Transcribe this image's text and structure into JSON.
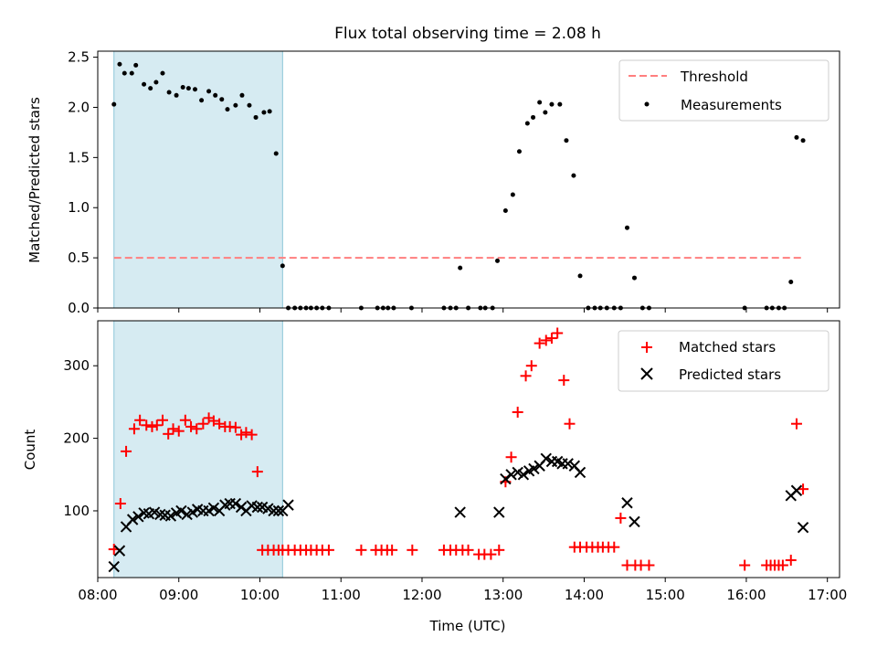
{
  "chart_data": [
    {
      "type": "scatter",
      "title": "Flux total observing time = 2.08 h",
      "xlabel": "",
      "ylabel": "Matched/Predicted stars",
      "xlim": [
        8.0,
        17.15
      ],
      "ylim": [
        0,
        2.56
      ],
      "xticks": [
        8,
        9,
        10,
        11,
        12,
        13,
        14,
        15,
        16,
        17
      ],
      "yticks": [
        0.0,
        0.5,
        1.0,
        1.5,
        2.0,
        2.5
      ],
      "ytick_labels": [
        "0.0",
        "0.5",
        "1.0",
        "1.5",
        "2.0",
        "2.5"
      ],
      "observing_window": [
        8.2,
        10.28
      ],
      "threshold": {
        "name": "Threshold",
        "value": 0.5,
        "x_start": 8.2,
        "x_end": 16.7,
        "color": "#ff7f7f"
      },
      "legend": {
        "position": "top-right",
        "entries": [
          "Threshold",
          "Measurements"
        ]
      },
      "series": [
        {
          "name": "Measurements",
          "color": "#000000",
          "marker": "dot",
          "x": [
            8.2,
            8.27,
            8.33,
            8.42,
            8.47,
            8.57,
            8.65,
            8.72,
            8.8,
            8.88,
            8.97,
            9.05,
            9.12,
            9.2,
            9.28,
            9.37,
            9.45,
            9.53,
            9.6,
            9.7,
            9.78,
            9.87,
            9.95,
            10.05,
            10.12,
            10.2,
            10.28,
            10.35,
            10.43,
            10.5,
            10.57,
            10.63,
            10.7,
            10.77,
            10.85,
            11.25,
            11.45,
            11.52,
            11.58,
            11.65,
            11.87,
            12.27,
            12.35,
            12.42,
            12.47,
            12.57,
            12.72,
            12.78,
            12.87,
            12.93,
            13.03,
            13.12,
            13.2,
            13.3,
            13.37,
            13.45,
            13.52,
            13.6,
            13.7,
            13.78,
            13.87,
            13.95,
            14.05,
            14.13,
            14.2,
            14.28,
            14.37,
            14.45,
            14.53,
            14.62,
            14.72,
            14.8,
            15.98,
            16.25,
            16.32,
            16.4,
            16.47,
            16.55,
            16.62,
            16.7
          ],
          "y": [
            2.03,
            2.43,
            2.34,
            2.34,
            2.42,
            2.23,
            2.19,
            2.25,
            2.34,
            2.15,
            2.12,
            2.2,
            2.19,
            2.18,
            2.07,
            2.16,
            2.12,
            2.08,
            1.98,
            2.02,
            2.12,
            2.02,
            1.9,
            1.95,
            1.96,
            1.54,
            0.42,
            0.0,
            0.0,
            0.0,
            0.0,
            0.0,
            0.0,
            0.0,
            0.0,
            0.0,
            0.0,
            0.0,
            0.0,
            0.0,
            0.0,
            0.0,
            0.0,
            0.0,
            0.4,
            0.0,
            0.0,
            0.0,
            0.0,
            0.47,
            0.97,
            1.13,
            1.56,
            1.84,
            1.9,
            2.05,
            1.95,
            2.03,
            2.03,
            1.67,
            1.32,
            0.32,
            0.0,
            0.0,
            0.0,
            0.0,
            0.0,
            0.0,
            0.8,
            0.3,
            0.0,
            0.0,
            0.0,
            0.0,
            0.0,
            0.0,
            0.0,
            0.26,
            1.7,
            1.67
          ]
        }
      ]
    },
    {
      "type": "scatter",
      "title": "",
      "xlabel": "Time (UTC)",
      "ylabel": "Count",
      "xlim": [
        8.0,
        17.15
      ],
      "ylim": [
        8,
        362
      ],
      "xticks": [
        8,
        9,
        10,
        11,
        12,
        13,
        14,
        15,
        16,
        17
      ],
      "xtick_labels": [
        "08:00",
        "09:00",
        "10:00",
        "11:00",
        "12:00",
        "13:00",
        "14:00",
        "15:00",
        "16:00",
        "17:00"
      ],
      "yticks": [
        100,
        200,
        300
      ],
      "ytick_labels": [
        "100",
        "200",
        "300"
      ],
      "observing_window": [
        8.2,
        10.28
      ],
      "legend": {
        "position": "top-right",
        "entries": [
          "Matched stars",
          "Predicted stars"
        ]
      },
      "series": [
        {
          "name": "Matched stars",
          "color": "#ff0000",
          "marker": "plus",
          "x": [
            8.2,
            8.28,
            8.35,
            8.45,
            8.52,
            8.6,
            8.67,
            8.73,
            8.8,
            8.87,
            8.93,
            9.0,
            9.08,
            9.15,
            9.22,
            9.3,
            9.37,
            9.43,
            9.5,
            9.57,
            9.63,
            9.7,
            9.77,
            9.83,
            9.9,
            9.97,
            10.03,
            10.1,
            10.17,
            10.23,
            10.28,
            10.35,
            10.43,
            10.5,
            10.57,
            10.63,
            10.7,
            10.77,
            10.85,
            11.25,
            11.43,
            11.5,
            11.57,
            11.63,
            11.88,
            12.27,
            12.35,
            12.42,
            12.5,
            12.57,
            12.7,
            12.77,
            12.85,
            12.95,
            13.03,
            13.1,
            13.18,
            13.28,
            13.35,
            13.45,
            13.53,
            13.6,
            13.67,
            13.75,
            13.82,
            13.88,
            13.95,
            14.03,
            14.1,
            14.17,
            14.23,
            14.3,
            14.37,
            14.45,
            14.53,
            14.63,
            14.7,
            14.8,
            15.98,
            16.25,
            16.3,
            16.35,
            16.4,
            16.45,
            16.55,
            16.62,
            16.7
          ],
          "y": [
            47,
            110,
            182,
            213,
            225,
            218,
            216,
            218,
            225,
            206,
            213,
            210,
            225,
            216,
            213,
            220,
            228,
            224,
            220,
            216,
            216,
            215,
            205,
            208,
            205,
            154,
            46,
            46,
            46,
            46,
            46,
            46,
            46,
            46,
            46,
            46,
            46,
            46,
            46,
            46,
            46,
            46,
            46,
            46,
            46,
            46,
            46,
            46,
            46,
            46,
            40,
            40,
            40,
            46,
            140,
            174,
            236,
            286,
            300,
            331,
            335,
            338,
            345,
            280,
            220,
            50,
            50,
            50,
            50,
            50,
            50,
            50,
            50,
            90,
            25,
            25,
            25,
            25,
            25,
            25,
            25,
            25,
            25,
            25,
            32,
            220,
            130
          ]
        },
        {
          "name": "Predicted stars",
          "color": "#000000",
          "marker": "x",
          "x": [
            8.2,
            8.27,
            8.35,
            8.43,
            8.5,
            8.57,
            8.63,
            8.7,
            8.77,
            8.83,
            8.9,
            8.97,
            9.03,
            9.1,
            9.17,
            9.23,
            9.3,
            9.37,
            9.43,
            9.5,
            9.57,
            9.63,
            9.7,
            9.77,
            9.83,
            9.9,
            9.97,
            10.03,
            10.1,
            10.17,
            10.23,
            10.28,
            10.35,
            12.47,
            12.95,
            13.03,
            13.1,
            13.18,
            13.25,
            13.32,
            13.38,
            13.45,
            13.53,
            13.6,
            13.67,
            13.73,
            13.8,
            13.88,
            13.95,
            14.53,
            14.62,
            16.55,
            16.62,
            16.7
          ],
          "y": [
            23,
            45,
            78,
            88,
            92,
            97,
            96,
            98,
            95,
            94,
            93,
            97,
            100,
            95,
            98,
            102,
            100,
            100,
            104,
            100,
            108,
            110,
            110,
            105,
            100,
            107,
            105,
            105,
            103,
            100,
            100,
            100,
            108,
            98,
            98,
            144,
            150,
            153,
            150,
            155,
            158,
            162,
            172,
            168,
            168,
            165,
            165,
            162,
            153,
            111,
            85,
            121,
            128,
            77
          ]
        }
      ]
    }
  ]
}
